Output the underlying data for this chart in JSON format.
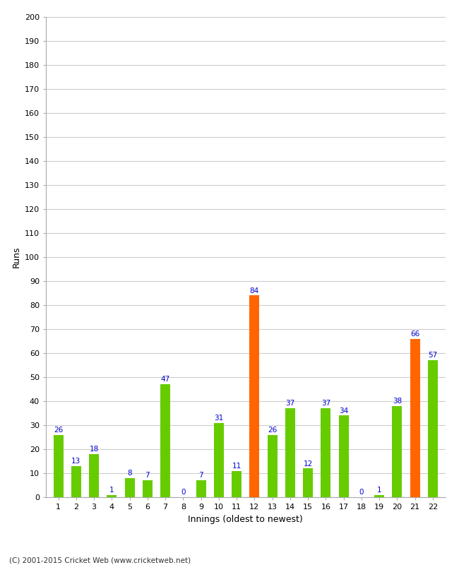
{
  "xlabel": "Innings (oldest to newest)",
  "ylabel": "Runs",
  "innings": [
    1,
    2,
    3,
    4,
    5,
    6,
    7,
    8,
    9,
    10,
    11,
    12,
    13,
    14,
    15,
    16,
    17,
    18,
    19,
    20,
    21,
    22
  ],
  "values": [
    26,
    13,
    18,
    1,
    8,
    7,
    47,
    0,
    7,
    31,
    11,
    84,
    26,
    37,
    12,
    37,
    34,
    0,
    1,
    38,
    66,
    57
  ],
  "colors": [
    "#66cc00",
    "#66cc00",
    "#66cc00",
    "#66cc00",
    "#66cc00",
    "#66cc00",
    "#66cc00",
    "#66cc00",
    "#66cc00",
    "#66cc00",
    "#66cc00",
    "#ff6600",
    "#66cc00",
    "#66cc00",
    "#66cc00",
    "#66cc00",
    "#66cc00",
    "#66cc00",
    "#66cc00",
    "#66cc00",
    "#ff6600",
    "#66cc00"
  ],
  "ylim": [
    0,
    200
  ],
  "yticks": [
    0,
    10,
    20,
    30,
    40,
    50,
    60,
    70,
    80,
    90,
    100,
    110,
    120,
    130,
    140,
    150,
    160,
    170,
    180,
    190,
    200
  ],
  "label_color": "#0000cc",
  "background_color": "#ffffff",
  "grid_color": "#cccccc",
  "footer": "(C) 2001-2015 Cricket Web (www.cricketweb.net)",
  "bar_width": 0.55
}
